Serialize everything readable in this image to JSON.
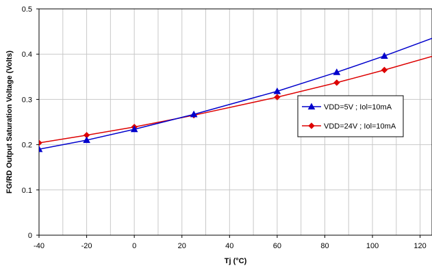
{
  "chart_data": {
    "type": "line",
    "title": "",
    "xlabel": "Tj (°C)",
    "ylabel": "FG/RD Output Saturation Voltage (Volts)",
    "xlim": [
      -40,
      125
    ],
    "ylim": [
      0,
      0.5
    ],
    "x_ticks": [
      -40,
      -20,
      0,
      20,
      40,
      60,
      80,
      100,
      120
    ],
    "x_tick_labels": [
      "-40",
      "-20",
      "0",
      "20",
      "40",
      "60",
      "80",
      "100",
      "120"
    ],
    "y_ticks": [
      0,
      0.1,
      0.2,
      0.3,
      0.4,
      0.5
    ],
    "y_tick_labels": [
      "0",
      "0.1",
      "0.2",
      "0.3",
      "0.4",
      "0.5"
    ],
    "grid": true,
    "legend_position": "right",
    "series": [
      {
        "name": "VDD=5V ; Iol=10mA",
        "color": "#0000cc",
        "marker": "triangle",
        "x": [
          -40,
          -20,
          0,
          25,
          60,
          85,
          105,
          125
        ],
        "y": [
          0.19,
          0.21,
          0.234,
          0.267,
          0.318,
          0.36,
          0.396,
          0.435
        ]
      },
      {
        "name": "VDD=24V ; Iol=10mA",
        "color": "#dd0000",
        "marker": "diamond",
        "x": [
          -40,
          -20,
          0,
          25,
          60,
          85,
          105,
          125
        ],
        "y": [
          0.204,
          0.221,
          0.239,
          0.265,
          0.305,
          0.337,
          0.365,
          0.395
        ]
      }
    ]
  }
}
